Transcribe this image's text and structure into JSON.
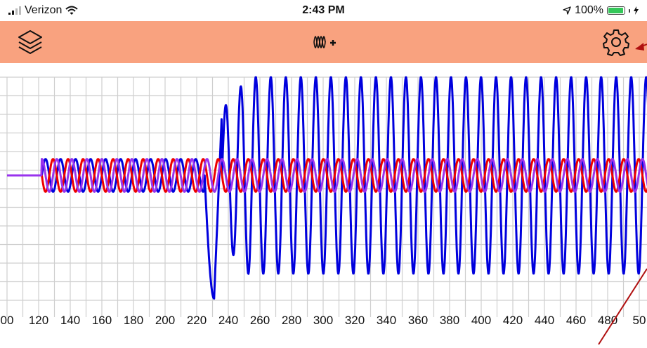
{
  "status_bar": {
    "carrier": "Verizon",
    "time": "2:43 PM",
    "battery": "100%",
    "battery_level": 1.0
  },
  "toolbar": {
    "background": "#f9a27f",
    "layers_icon": "layers-icon",
    "add_wave_icon": "waveform-plus-icon",
    "settings_icon": "gear-icon"
  },
  "chart_data": {
    "type": "line",
    "x_tick_labels": [
      "00",
      "120",
      "140",
      "160",
      "180",
      "200",
      "220",
      "240",
      "260",
      "280",
      "300",
      "320",
      "340",
      "360",
      "380",
      "400",
      "420",
      "440",
      "460",
      "480",
      "50"
    ],
    "x_range": [
      100,
      500
    ],
    "y_range": [
      -8,
      8
    ],
    "grid": true,
    "series": [
      {
        "color": "#0000dd",
        "period": 9.5,
        "segments": [
          {
            "x_start": 100,
            "x_end": 122,
            "amplitude": 0
          },
          {
            "x_start": 122,
            "x_end": 225,
            "amplitude": 1,
            "phase": 0
          },
          {
            "x_start": 225,
            "x_end": 500,
            "amplitude": 6,
            "phase": 0,
            "transient": [
              {
                "x": 230,
                "y": -7.5
              },
              {
                "x": 235,
                "y": 4
              },
              {
                "x": 240,
                "y": -5.8
              },
              {
                "x": 250,
                "y": 6
              }
            ]
          }
        ]
      },
      {
        "color": "#ee0000",
        "period": 9.5,
        "amplitude": 1,
        "x_start": 122,
        "phase": 180
      },
      {
        "color": "#9933ee",
        "period": 9.5,
        "amplitude": 1,
        "x_start": 122,
        "phase": 90
      }
    ]
  }
}
